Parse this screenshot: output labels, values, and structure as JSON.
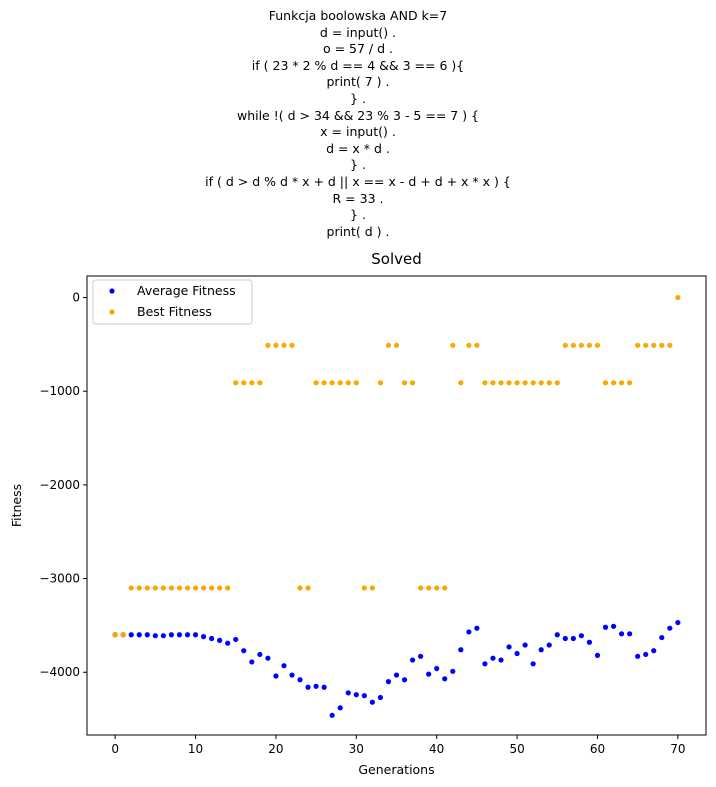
{
  "header_lines": [
    "Funkcja boolowska AND k=7",
    "d = input() .",
    "o = 57 / d .",
    "if ( 23 * 2 % d == 4 && 3 == 6 ){",
    "print( 7 ) .",
    "} .",
    "while !( d > 34 && 23 % 3 - 5 == 7 ) {",
    "x = input() .",
    "d = x * d .",
    "} .",
    "if ( d > d % d * x + d || x == x - d + d + x * x ) {",
    "R = 33 .",
    "} .",
    "print( d ) ."
  ],
  "chart_data": {
    "type": "scatter",
    "title": "Solved",
    "xlabel": "Generations",
    "ylabel": "Fitness",
    "xlim": [
      -3.5,
      73.5
    ],
    "ylim": [
      -4670,
      230
    ],
    "xticks": [
      0,
      10,
      20,
      30,
      40,
      50,
      60,
      70
    ],
    "yticks": [
      -4000,
      -3000,
      -2000,
      -1000,
      0
    ],
    "ytick_labels": [
      "−4000",
      "−3000",
      "−2000",
      "−1000",
      "0"
    ],
    "legend_position": "top-left",
    "x": [
      0,
      1,
      2,
      3,
      4,
      5,
      6,
      7,
      8,
      9,
      10,
      11,
      12,
      13,
      14,
      15,
      16,
      17,
      18,
      19,
      20,
      21,
      22,
      23,
      24,
      25,
      26,
      27,
      28,
      29,
      30,
      31,
      32,
      33,
      34,
      35,
      36,
      37,
      38,
      39,
      40,
      41,
      42,
      43,
      44,
      45,
      46,
      47,
      48,
      49,
      50,
      51,
      52,
      53,
      54,
      55,
      56,
      57,
      58,
      59,
      60,
      61,
      62,
      63,
      64,
      65,
      66,
      67,
      68,
      69,
      70
    ],
    "series": [
      {
        "name": "Average Fitness",
        "color": "#0000ff",
        "values": [
          -3600,
          -3600,
          -3600,
          -3600,
          -3600,
          -3610,
          -3610,
          -3600,
          -3600,
          -3600,
          -3600,
          -3620,
          -3640,
          -3660,
          -3690,
          -3650,
          -3770,
          -3890,
          -3810,
          -3850,
          -4040,
          -3930,
          -4030,
          -4080,
          -4160,
          -4150,
          -4160,
          -4460,
          -4380,
          -4220,
          -4240,
          -4250,
          -4320,
          -4270,
          -4100,
          -4030,
          -4080,
          -3870,
          -3830,
          -4020,
          -3960,
          -4070,
          -3990,
          -3760,
          -3570,
          -3530,
          -3910,
          -3850,
          -3870,
          -3730,
          -3800,
          -3710,
          -3910,
          -3760,
          -3710,
          -3600,
          -3640,
          -3640,
          -3610,
          -3680,
          -3820,
          -3520,
          -3510,
          -3590,
          -3590,
          -3830,
          -3810,
          -3770,
          -3630,
          -3530,
          -3470
        ]
      },
      {
        "name": "Best Fitness",
        "color": "#ffa500",
        "values": [
          -3600,
          -3600,
          -3100,
          -3100,
          -3100,
          -3100,
          -3100,
          -3100,
          -3100,
          -3100,
          -3100,
          -3100,
          -3100,
          -3100,
          -3100,
          -910,
          -910,
          -910,
          -910,
          -510,
          -510,
          -510,
          -510,
          -3100,
          -3100,
          -910,
          -910,
          -910,
          -910,
          -910,
          -910,
          -3100,
          -3100,
          -910,
          -510,
          -510,
          -910,
          -910,
          -3100,
          -3100,
          -3100,
          -3100,
          -510,
          -910,
          -510,
          -510,
          -910,
          -910,
          -910,
          -910,
          -910,
          -910,
          -910,
          -910,
          -910,
          -910,
          -510,
          -510,
          -510,
          -510,
          -510,
          -910,
          -910,
          -910,
          -910,
          -510,
          -510,
          -510,
          -510,
          -510,
          0
        ]
      }
    ]
  }
}
